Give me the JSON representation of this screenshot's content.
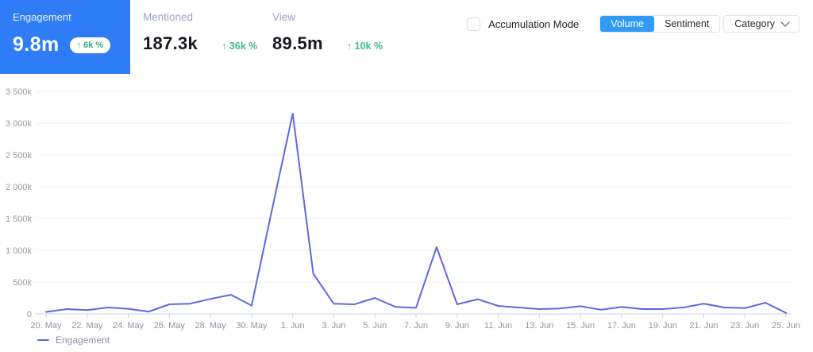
{
  "header": {
    "engagement_card": {
      "label": "Engagement",
      "value": "9.8m",
      "delta": "↑ 6k %"
    },
    "stats": [
      {
        "label": "Mentioned",
        "value": "187.3k",
        "delta": "↑ 36k %"
      },
      {
        "label": "View",
        "value": "89.5m",
        "delta": "↑ 10k %"
      }
    ],
    "accumulation_mode_label": "Accumulation Mode",
    "buttons": {
      "volume": "Volume",
      "sentiment": "Sentiment",
      "category": "Category"
    }
  },
  "colors": {
    "card_blue": "#2e7cf6",
    "active_button_blue": "#2f9bf5",
    "delta_green": "#43ba8c",
    "line_blue": "#5b6ae0",
    "grid_gray": "#f1f1f6",
    "axis_gray": "#c9d2ec",
    "x_label_gray": "#8f93a3",
    "y_label_gray": "#9a9aa2"
  },
  "chart_data": {
    "type": "line",
    "title": "",
    "xlabel": "",
    "ylabel": "",
    "value_unit": "k (thousands)",
    "ylim": [
      0,
      3500
    ],
    "y_tick_step": 500,
    "y_tick_labels": [
      "0",
      "500k",
      "1 000k",
      "1 500k",
      "2 000k",
      "2 500k",
      "3 000k",
      "3 500k"
    ],
    "x": [
      "20. May",
      "21. May",
      "22. May",
      "23. May",
      "24. May",
      "25. May",
      "26. May",
      "27. May",
      "28. May",
      "29. May",
      "30. May",
      "31. May",
      "1. Jun",
      "2. Jun",
      "3. Jun",
      "4. Jun",
      "5. Jun",
      "6. Jun",
      "7. Jun",
      "8. Jun",
      "9. Jun",
      "10. Jun",
      "11. Jun",
      "12. Jun",
      "13. Jun",
      "14. Jun",
      "15. Jun",
      "16. Jun",
      "17. Jun",
      "18. Jun",
      "19. Jun",
      "20. Jun",
      "21. Jun",
      "22. Jun",
      "23. Jun",
      "24. Jun",
      "25. Jun"
    ],
    "series": [
      {
        "name": "Engagement",
        "color": "#5b6ae0",
        "values": [
          30,
          75,
          60,
          100,
          80,
          35,
          150,
          160,
          235,
          300,
          130,
          1650,
          3150,
          630,
          160,
          150,
          250,
          110,
          95,
          1050,
          150,
          230,
          125,
          100,
          75,
          85,
          120,
          65,
          110,
          75,
          75,
          100,
          160,
          100,
          90,
          175,
          15
        ]
      }
    ],
    "layout": {
      "grid": true,
      "x_label_every": 2,
      "legend_position": "bottom-left"
    }
  }
}
